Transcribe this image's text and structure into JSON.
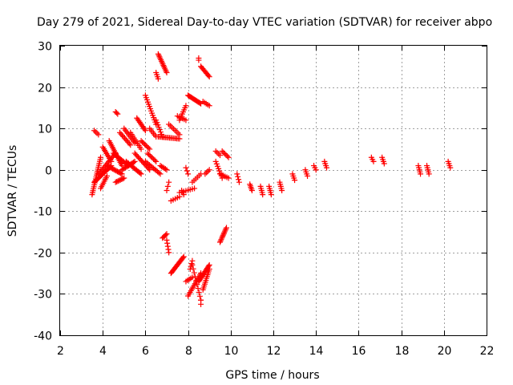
{
  "colors": {
    "marker": "#ff0000",
    "grid": "#a0a0a0",
    "axis": "#000000"
  },
  "chart_data": {
    "type": "scatter",
    "title": "Day 279 of 2021, Sidereal Day-to-day VTEC variation (SDTVAR) for receiver abpo",
    "xlabel": "GPS time / hours",
    "ylabel": "SDTVAR / TECUs",
    "xlim": [
      2,
      22
    ],
    "ylim": [
      -40,
      30
    ],
    "xticks": [
      2,
      4,
      6,
      8,
      10,
      12,
      14,
      16,
      18,
      20,
      22
    ],
    "yticks": [
      -40,
      -30,
      -20,
      -10,
      0,
      10,
      20,
      30
    ],
    "grid": true,
    "marker": "+",
    "series": [
      {
        "name": "SDTVAR",
        "segments": [
          {
            "x0": 3.5,
            "y0": -6,
            "x1": 3.9,
            "y1": 3,
            "n": 20
          },
          {
            "x0": 3.6,
            "y0": 9.5,
            "x1": 3.8,
            "y1": 8.5,
            "n": 4
          },
          {
            "x0": 3.6,
            "y0": -3,
            "x1": 4.4,
            "y1": 1,
            "n": 18
          },
          {
            "x0": 3.8,
            "y0": -1,
            "x1": 4.6,
            "y1": 4,
            "n": 16
          },
          {
            "x0": 3.9,
            "y0": -4.5,
            "x1": 4.2,
            "y1": -1.5,
            "n": 8
          },
          {
            "x0": 4.0,
            "y0": 5.5,
            "x1": 4.4,
            "y1": 2,
            "n": 10
          },
          {
            "x0": 4.2,
            "y0": 1,
            "x1": 4.9,
            "y1": -1,
            "n": 14
          },
          {
            "x0": 4.3,
            "y0": 7,
            "x1": 4.9,
            "y1": 1,
            "n": 16
          },
          {
            "x0": 4.5,
            "y0": 4,
            "x1": 5.2,
            "y1": 1,
            "n": 14
          },
          {
            "x0": 4.6,
            "y0": 14,
            "x1": 4.7,
            "y1": 13.5,
            "n": 3
          },
          {
            "x0": 4.6,
            "y0": -3,
            "x1": 5.0,
            "y1": -2,
            "n": 8
          },
          {
            "x0": 4.8,
            "y0": 9,
            "x1": 5.3,
            "y1": 6,
            "n": 10
          },
          {
            "x0": 4.9,
            "y0": 0,
            "x1": 5.5,
            "y1": 2,
            "n": 12
          },
          {
            "x0": 5.0,
            "y0": 10,
            "x1": 5.5,
            "y1": 6.5,
            "n": 10
          },
          {
            "x0": 5.1,
            "y0": 2,
            "x1": 5.8,
            "y1": -1,
            "n": 14
          },
          {
            "x0": 5.3,
            "y0": 9,
            "x1": 5.8,
            "y1": 5,
            "n": 10
          },
          {
            "x0": 5.5,
            "y0": 4,
            "x1": 6.2,
            "y1": 0,
            "n": 14
          },
          {
            "x0": 5.6,
            "y0": 12.5,
            "x1": 6.0,
            "y1": 9.5,
            "n": 10
          },
          {
            "x0": 5.8,
            "y0": 7,
            "x1": 6.2,
            "y1": 5,
            "n": 8
          },
          {
            "x0": 6.0,
            "y0": 18,
            "x1": 6.5,
            "y1": 11,
            "n": 14
          },
          {
            "x0": 6.0,
            "y0": 2,
            "x1": 6.7,
            "y1": -1,
            "n": 12
          },
          {
            "x0": 6.1,
            "y0": 4,
            "x1": 6.5,
            "y1": 2,
            "n": 8
          },
          {
            "x0": 6.2,
            "y0": 10,
            "x1": 6.5,
            "y1": 8,
            "n": 6
          },
          {
            "x0": 6.5,
            "y0": 23.5,
            "x1": 6.6,
            "y1": 22,
            "n": 4
          },
          {
            "x0": 6.6,
            "y0": 28,
            "x1": 7.0,
            "y1": 23.5,
            "n": 14
          },
          {
            "x0": 6.5,
            "y0": 12,
            "x1": 6.8,
            "y1": 8,
            "n": 8
          },
          {
            "x0": 6.6,
            "y0": 8,
            "x1": 7.6,
            "y1": 7.5,
            "n": 16
          },
          {
            "x0": 6.7,
            "y0": 1,
            "x1": 7.0,
            "y1": 0,
            "n": 6
          },
          {
            "x0": 6.8,
            "y0": -16.5,
            "x1": 7.0,
            "y1": -15.5,
            "n": 5
          },
          {
            "x0": 7.0,
            "y0": -17,
            "x1": 7.1,
            "y1": -20,
            "n": 5
          },
          {
            "x0": 7.0,
            "y0": -5,
            "x1": 7.1,
            "y1": -3,
            "n": 3
          },
          {
            "x0": 7.1,
            "y0": 11,
            "x1": 7.6,
            "y1": 8.5,
            "n": 8
          },
          {
            "x0": 7.2,
            "y0": -25,
            "x1": 7.8,
            "y1": -21,
            "n": 16
          },
          {
            "x0": 7.2,
            "y0": -7.5,
            "x1": 7.6,
            "y1": -6.5,
            "n": 5
          },
          {
            "x0": 7.5,
            "y0": 13,
            "x1": 7.9,
            "y1": 12,
            "n": 6
          },
          {
            "x0": 7.6,
            "y0": 12,
            "x1": 7.9,
            "y1": 15.5,
            "n": 8
          },
          {
            "x0": 7.6,
            "y0": -5.5,
            "x1": 8.3,
            "y1": -4.5,
            "n": 8
          },
          {
            "x0": 7.7,
            "y0": -5,
            "x1": 7.8,
            "y1": -6,
            "n": 3
          },
          {
            "x0": 7.9,
            "y0": -27,
            "x1": 8.2,
            "y1": -26,
            "n": 5
          },
          {
            "x0": 7.9,
            "y0": 0.5,
            "x1": 8.0,
            "y1": -1,
            "n": 3
          },
          {
            "x0": 8.0,
            "y0": 18,
            "x1": 8.6,
            "y1": 16,
            "n": 14
          },
          {
            "x0": 8.0,
            "y0": -30.5,
            "x1": 8.6,
            "y1": -25,
            "n": 14
          },
          {
            "x0": 8.1,
            "y0": -24,
            "x1": 8.2,
            "y1": -22,
            "n": 4
          },
          {
            "x0": 8.2,
            "y0": -3,
            "x1": 8.6,
            "y1": -1,
            "n": 6
          },
          {
            "x0": 8.2,
            "y0": -23,
            "x1": 8.6,
            "y1": -31.5,
            "n": 10
          },
          {
            "x0": 8.5,
            "y0": 27,
            "x1": 8.5,
            "y1": 26.5,
            "n": 2
          },
          {
            "x0": 8.5,
            "y0": -27,
            "x1": 9.0,
            "y1": -23,
            "n": 16
          },
          {
            "x0": 8.6,
            "y0": 25,
            "x1": 9.0,
            "y1": 22.5,
            "n": 10
          },
          {
            "x0": 8.6,
            "y0": -32.5,
            "x1": 8.6,
            "y1": -31.5,
            "n": 2
          },
          {
            "x0": 8.7,
            "y0": -29,
            "x1": 9.0,
            "y1": -24,
            "n": 12
          },
          {
            "x0": 8.7,
            "y0": 16.5,
            "x1": 9.0,
            "y1": 15.5,
            "n": 5
          },
          {
            "x0": 8.8,
            "y0": -1,
            "x1": 9.0,
            "y1": 0,
            "n": 4
          },
          {
            "x0": 9.3,
            "y0": 2,
            "x1": 9.6,
            "y1": -2,
            "n": 8
          },
          {
            "x0": 9.3,
            "y0": 4.5,
            "x1": 9.5,
            "y1": 3.5,
            "n": 4
          },
          {
            "x0": 9.5,
            "y0": -17.5,
            "x1": 9.8,
            "y1": -14,
            "n": 12
          },
          {
            "x0": 9.5,
            "y0": -1,
            "x1": 9.9,
            "y1": -2,
            "n": 6
          },
          {
            "x0": 9.6,
            "y0": 4.5,
            "x1": 9.9,
            "y1": 3,
            "n": 6
          },
          {
            "x0": 10.3,
            "y0": -1,
            "x1": 10.4,
            "y1": -3,
            "n": 4
          },
          {
            "x0": 10.9,
            "y0": -3.5,
            "x1": 11.0,
            "y1": -5,
            "n": 5
          },
          {
            "x0": 11.4,
            "y0": -4,
            "x1": 11.5,
            "y1": -6,
            "n": 5
          },
          {
            "x0": 11.8,
            "y0": -4,
            "x1": 11.9,
            "y1": -6,
            "n": 5
          },
          {
            "x0": 12.3,
            "y0": -3,
            "x1": 12.4,
            "y1": -5,
            "n": 5
          },
          {
            "x0": 12.9,
            "y0": -1,
            "x1": 13.0,
            "y1": -2.5,
            "n": 4
          },
          {
            "x0": 13.5,
            "y0": 0,
            "x1": 13.6,
            "y1": -1.5,
            "n": 4
          },
          {
            "x0": 13.9,
            "y0": 1,
            "x1": 14.0,
            "y1": 0,
            "n": 3
          },
          {
            "x0": 14.4,
            "y0": 2,
            "x1": 14.5,
            "y1": 0.5,
            "n": 4
          },
          {
            "x0": 16.6,
            "y0": 3,
            "x1": 16.7,
            "y1": 2,
            "n": 3
          },
          {
            "x0": 17.1,
            "y0": 3,
            "x1": 17.2,
            "y1": 1.5,
            "n": 4
          },
          {
            "x0": 18.8,
            "y0": 1,
            "x1": 18.9,
            "y1": -1,
            "n": 5
          },
          {
            "x0": 19.2,
            "y0": 1,
            "x1": 19.3,
            "y1": -1,
            "n": 5
          },
          {
            "x0": 20.2,
            "y0": 2,
            "x1": 20.3,
            "y1": 0.5,
            "n": 4
          }
        ]
      }
    ]
  }
}
